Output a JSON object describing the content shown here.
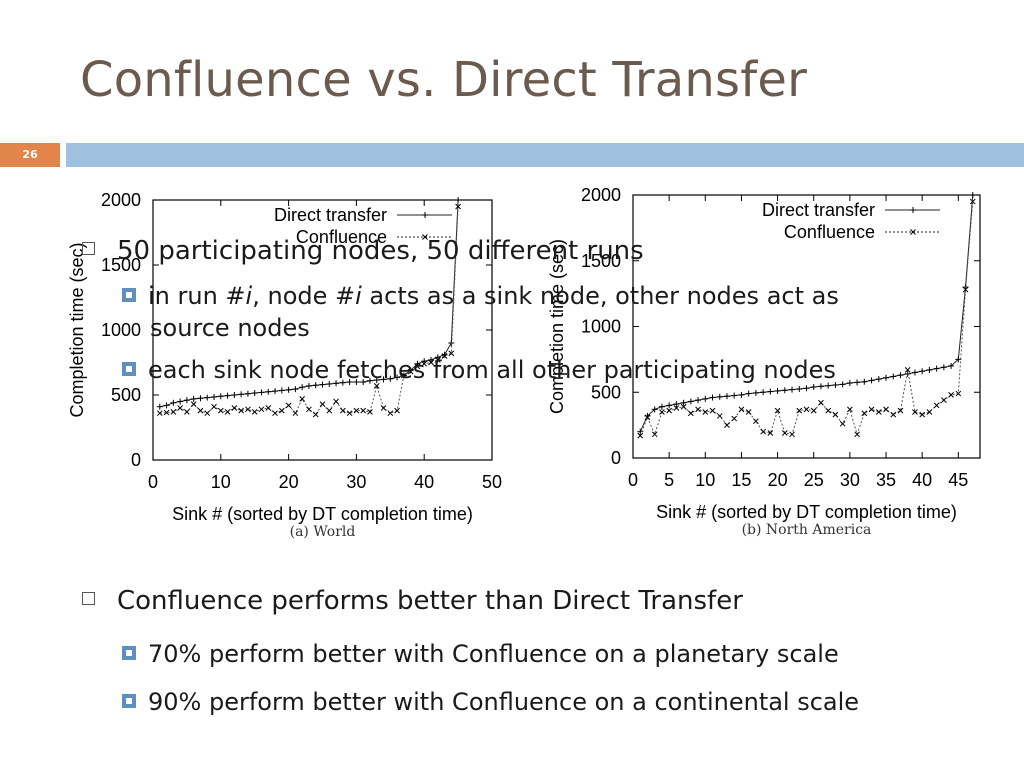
{
  "slide": {
    "title": "Confluence vs. Direct Transfer",
    "number": "26"
  },
  "bullets": {
    "b1": "50 participating nodes, 50 different runs",
    "s1_a": "in run #",
    "s1_b": "i",
    "s1_c": ", node #",
    "s1_d": "i",
    "s1_e": " acts as a sink node, other nodes act as",
    "s1_f": "source nodes",
    "s2": "each sink node fetches from all other participating nodes",
    "b2": "Confluence performs better than Direct Transfer",
    "s3": "70% perform better with Confluence on a planetary scale",
    "s4": "90% perform better with Confluence on a continental scale"
  },
  "colors": {
    "title": "#6b5a4e",
    "bar": "#9fc0de",
    "number_box": "#e2854a",
    "sub_bullet": "#5f8fbf"
  },
  "chart_data": [
    {
      "type": "line",
      "caption": "(a) World",
      "xlabel": "Sink # (sorted by DT completion time)",
      "ylabel": "Completion time (sec)",
      "xlim": [
        0,
        50
      ],
      "ylim": [
        0,
        2000
      ],
      "xticks": [
        0,
        10,
        20,
        30,
        40,
        50
      ],
      "yticks": [
        0,
        500,
        1000,
        1500,
        2000
      ],
      "legend_position": "top-right",
      "series": [
        {
          "name": "Direct transfer",
          "marker": "+",
          "x": [
            1,
            2,
            3,
            4,
            5,
            6,
            7,
            8,
            9,
            10,
            11,
            12,
            13,
            14,
            15,
            16,
            17,
            18,
            19,
            20,
            21,
            22,
            23,
            24,
            25,
            26,
            27,
            28,
            29,
            30,
            31,
            32,
            33,
            34,
            35,
            36,
            37,
            38,
            39,
            40,
            41,
            42,
            43,
            44,
            45
          ],
          "y": [
            410,
            420,
            440,
            450,
            460,
            470,
            475,
            480,
            485,
            490,
            495,
            500,
            505,
            510,
            515,
            520,
            525,
            530,
            535,
            540,
            545,
            560,
            570,
            575,
            580,
            585,
            590,
            595,
            600,
            600,
            600,
            610,
            615,
            620,
            625,
            635,
            650,
            690,
            740,
            760,
            770,
            790,
            810,
            900,
            2000
          ]
        },
        {
          "name": "Confluence",
          "marker": "x",
          "x": [
            1,
            2,
            3,
            4,
            5,
            6,
            7,
            8,
            9,
            10,
            11,
            12,
            13,
            14,
            15,
            16,
            17,
            18,
            19,
            20,
            21,
            22,
            23,
            24,
            25,
            26,
            27,
            28,
            29,
            30,
            31,
            32,
            33,
            34,
            35,
            36,
            37,
            38,
            39,
            40,
            41,
            42,
            43,
            44,
            45
          ],
          "y": [
            360,
            365,
            370,
            400,
            370,
            430,
            380,
            360,
            410,
            380,
            370,
            400,
            380,
            390,
            370,
            390,
            400,
            360,
            380,
            420,
            360,
            470,
            390,
            350,
            430,
            380,
            450,
            380,
            360,
            380,
            380,
            370,
            570,
            400,
            360,
            380,
            650,
            680,
            720,
            740,
            750,
            770,
            800,
            820,
            1950
          ]
        }
      ]
    },
    {
      "type": "line",
      "caption": "(b) North America",
      "xlabel": "Sink # (sorted by DT completion time)",
      "ylabel": "Completion time (sec)",
      "xlim": [
        0,
        48
      ],
      "ylim": [
        0,
        2000
      ],
      "xticks": [
        0,
        5,
        10,
        15,
        20,
        25,
        30,
        35,
        40,
        45
      ],
      "yticks": [
        0,
        500,
        1000,
        1500,
        2000
      ],
      "legend_position": "top-right",
      "series": [
        {
          "name": "Direct transfer",
          "marker": "+",
          "x": [
            1,
            2,
            3,
            4,
            5,
            6,
            7,
            8,
            9,
            10,
            11,
            12,
            13,
            14,
            15,
            16,
            17,
            18,
            19,
            20,
            21,
            22,
            23,
            24,
            25,
            26,
            27,
            28,
            29,
            30,
            31,
            32,
            33,
            34,
            35,
            36,
            37,
            38,
            39,
            40,
            41,
            42,
            43,
            44,
            45,
            46,
            47
          ],
          "y": [
            200,
            320,
            370,
            390,
            400,
            410,
            420,
            430,
            440,
            450,
            460,
            465,
            470,
            475,
            480,
            490,
            495,
            500,
            505,
            510,
            515,
            520,
            525,
            530,
            540,
            545,
            550,
            555,
            560,
            570,
            575,
            580,
            590,
            600,
            610,
            620,
            630,
            640,
            650,
            660,
            670,
            680,
            690,
            700,
            750,
            1300,
            2000
          ]
        },
        {
          "name": "Confluence",
          "marker": "x",
          "x": [
            1,
            2,
            3,
            4,
            5,
            6,
            7,
            8,
            9,
            10,
            11,
            12,
            13,
            14,
            15,
            16,
            17,
            18,
            19,
            20,
            21,
            22,
            23,
            24,
            25,
            26,
            27,
            28,
            29,
            30,
            31,
            32,
            33,
            34,
            35,
            36,
            37,
            38,
            39,
            40,
            41,
            42,
            43,
            44,
            45,
            46,
            47
          ],
          "y": [
            170,
            310,
            180,
            350,
            360,
            380,
            390,
            340,
            370,
            350,
            360,
            320,
            250,
            300,
            370,
            350,
            280,
            200,
            190,
            360,
            190,
            180,
            360,
            370,
            360,
            420,
            360,
            330,
            260,
            370,
            180,
            340,
            370,
            350,
            370,
            330,
            360,
            670,
            350,
            330,
            350,
            400,
            440,
            480,
            490,
            1280,
            1950
          ]
        }
      ]
    }
  ]
}
